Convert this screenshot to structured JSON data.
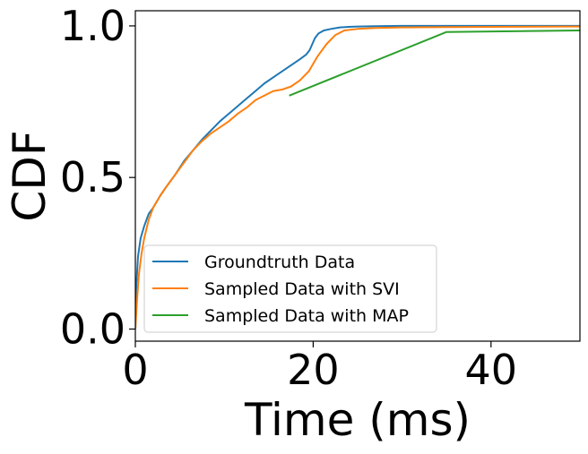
{
  "chart_data": {
    "type": "line",
    "title": "",
    "xlabel": "Time (ms)",
    "ylabel": "CDF",
    "xlim": [
      0,
      50
    ],
    "ylim": [
      -0.04,
      1.05
    ],
    "xticks": [
      0,
      20,
      40
    ],
    "xtick_labels": [
      "0",
      "20",
      "40"
    ],
    "yticks": [
      0.0,
      0.5,
      1.0
    ],
    "ytick_labels": [
      "0.0",
      "0.5",
      "1.0"
    ],
    "grid": false,
    "legend_position": "bottom-left",
    "series": [
      {
        "name": "Groundtruth Data",
        "color": "#1f77b4",
        "x": [
          0,
          0.1,
          0.3,
          0.6,
          1.0,
          1.5,
          2.0,
          2.8,
          3.5,
          4.5,
          5.5,
          6.5,
          7.5,
          8.5,
          9.5,
          10.5,
          11.5,
          12.5,
          13.5,
          14.5,
          15.5,
          16.5,
          17.5,
          18.5,
          19.2,
          19.6,
          19.9,
          20.2,
          20.6,
          21.2,
          22.0,
          23.0,
          24.0,
          25.0,
          27.0,
          30.0,
          35.0,
          40.0,
          50.0
        ],
        "y": [
          0.0,
          0.14,
          0.24,
          0.3,
          0.34,
          0.38,
          0.4,
          0.44,
          0.47,
          0.51,
          0.555,
          0.59,
          0.625,
          0.655,
          0.685,
          0.71,
          0.735,
          0.76,
          0.785,
          0.81,
          0.83,
          0.85,
          0.87,
          0.89,
          0.905,
          0.92,
          0.94,
          0.96,
          0.975,
          0.985,
          0.99,
          0.995,
          0.997,
          0.998,
          0.999,
          1.0,
          1.0,
          1.0,
          1.0
        ]
      },
      {
        "name": "Sampled Data with SVI",
        "color": "#ff7f0e",
        "x": [
          0,
          0.2,
          0.4,
          0.7,
          1.0,
          1.5,
          2.0,
          2.8,
          3.5,
          4.5,
          5.5,
          6.5,
          7.5,
          8.5,
          9.5,
          10.5,
          11.5,
          12.5,
          13.5,
          14.5,
          15.5,
          16.5,
          17.5,
          18.5,
          19.5,
          20.5,
          21.5,
          22.5,
          23.5,
          25.0,
          27.0,
          30.0,
          35.0,
          40.0,
          50.0
        ],
        "y": [
          0.0,
          0.1,
          0.18,
          0.25,
          0.3,
          0.36,
          0.4,
          0.44,
          0.47,
          0.51,
          0.55,
          0.59,
          0.62,
          0.645,
          0.665,
          0.685,
          0.71,
          0.73,
          0.755,
          0.77,
          0.785,
          0.79,
          0.8,
          0.82,
          0.85,
          0.9,
          0.94,
          0.97,
          0.985,
          0.99,
          0.993,
          0.995,
          0.996,
          0.997,
          0.998
        ]
      },
      {
        "name": "Sampled Data with MAP",
        "color": "#2ca02c",
        "x": [
          17.3,
          35.0,
          50.0
        ],
        "y": [
          0.77,
          0.98,
          0.985
        ]
      }
    ]
  }
}
